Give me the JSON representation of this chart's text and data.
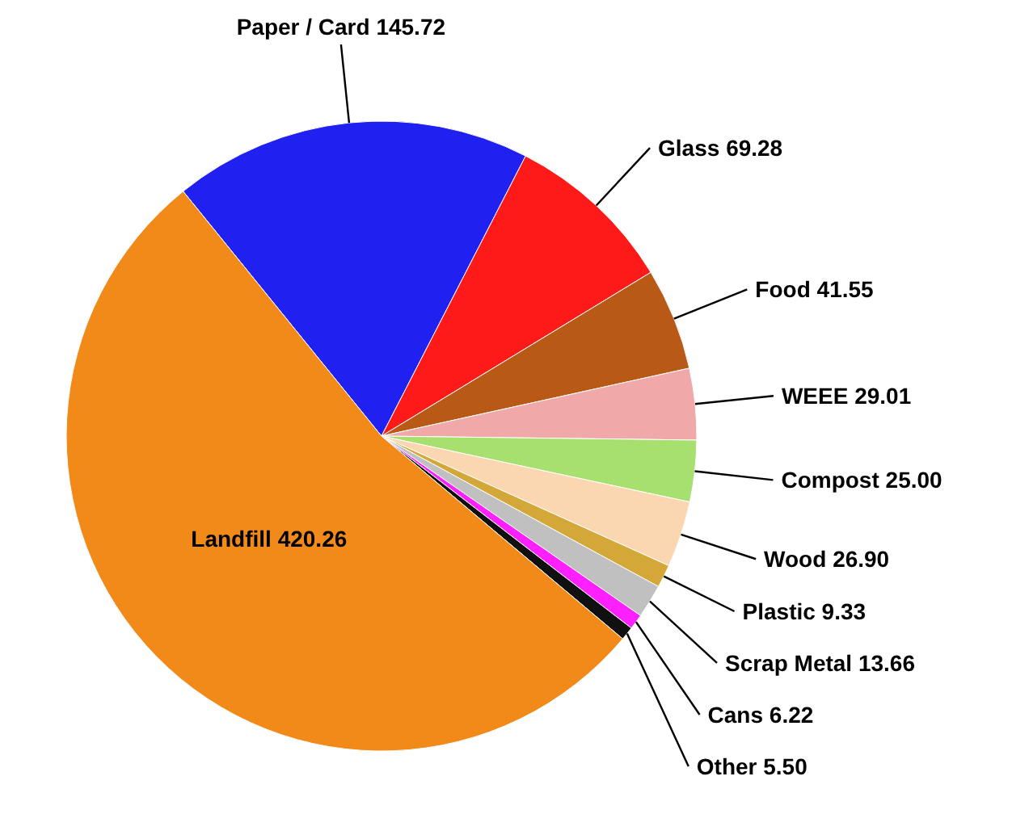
{
  "chart_data": {
    "type": "pie",
    "categories": [
      "Paper / Card",
      "Glass",
      "Food",
      "WEEE",
      "Compost",
      "Wood",
      "Plastic",
      "Scrap Metal",
      "Cans",
      "Other",
      "Landfill"
    ],
    "values": [
      145.72,
      69.28,
      41.55,
      29.01,
      25.0,
      26.9,
      9.33,
      13.66,
      6.22,
      5.5,
      420.26
    ],
    "value_labels": [
      "145.72",
      "69.28",
      "41.55",
      "29.01",
      "25.00",
      "26.90",
      "9.33",
      "13.66",
      "6.22",
      "5.50",
      "420.26"
    ],
    "colors": [
      "#2020f0",
      "#ff1a1a",
      "#b85a16",
      "#f0a8a8",
      "#a8e070",
      "#fad7b0",
      "#d4a838",
      "#c0c0c0",
      "#ff20ff",
      "#101010",
      "#f28a1a"
    ]
  }
}
